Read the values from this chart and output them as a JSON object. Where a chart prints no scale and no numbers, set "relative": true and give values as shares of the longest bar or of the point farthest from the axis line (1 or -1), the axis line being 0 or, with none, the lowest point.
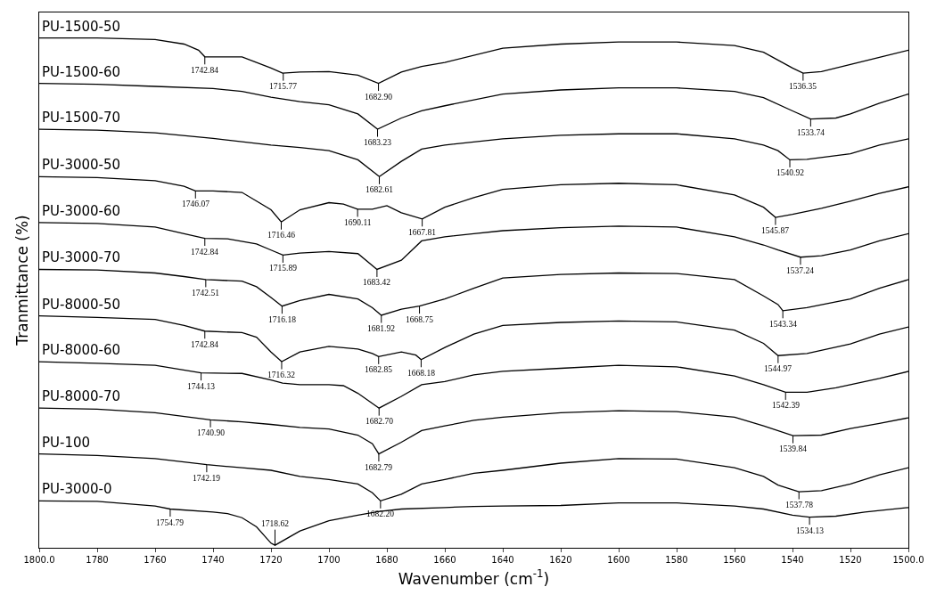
{
  "chart_data": {
    "type": "line",
    "relative": true,
    "xlabel": "Wavenumber (cm$^{-1}$)",
    "ylabel": "Tranmittance (%)",
    "xlim": [
      1800,
      1500
    ],
    "xticks": [
      {
        "value": 1800,
        "label": "1800.0"
      },
      {
        "value": 1780,
        "label": "1780"
      },
      {
        "value": 1760,
        "label": "1760"
      },
      {
        "value": 1740,
        "label": "1740"
      },
      {
        "value": 1720,
        "label": "1720"
      },
      {
        "value": 1700,
        "label": "1700"
      },
      {
        "value": 1680,
        "label": "1680"
      },
      {
        "value": 1660,
        "label": "1660"
      },
      {
        "value": 1640,
        "label": "1640"
      },
      {
        "value": 1620,
        "label": "1620"
      },
      {
        "value": 1600,
        "label": "1600"
      },
      {
        "value": 1580,
        "label": "1580"
      },
      {
        "value": 1560,
        "label": "1560"
      },
      {
        "value": 1540,
        "label": "1540"
      },
      {
        "value": 1520,
        "label": "1520"
      },
      {
        "value": 1500,
        "label": "1500.0"
      }
    ],
    "grid": false,
    "legend": false,
    "marker": "none",
    "line_style": "solid",
    "series": [
      {
        "name": "PU-1500-50",
        "color": "#000000",
        "x": [
          1800,
          1780,
          1760,
          1750,
          1745,
          1742.84,
          1730,
          1720,
          1716,
          1710,
          1700,
          1690,
          1682.9,
          1675,
          1668,
          1660,
          1640,
          1620,
          1600,
          1580,
          1560,
          1550,
          1540,
          1536.35,
          1530,
          1520,
          1510,
          1500
        ],
        "values": [
          1,
          1,
          0.997,
          0.988,
          0.976,
          0.963,
          0.963,
          0.941,
          0.931,
          0.933,
          0.934,
          0.927,
          0.911,
          0.933,
          0.944,
          0.952,
          0.98,
          0.988,
          0.992,
          0.992,
          0.985,
          0.972,
          0.941,
          0.931,
          0.934,
          0.948,
          0.962,
          0.976
        ]
      },
      {
        "name": "PU-1500-60",
        "color": "#000000",
        "x": [
          1800,
          1780,
          1760,
          1740,
          1730,
          1720,
          1710,
          1700,
          1690,
          1683.23,
          1675,
          1668,
          1660,
          1640,
          1620,
          1600,
          1580,
          1560,
          1550,
          1540,
          1533.74,
          1525,
          1520,
          1510,
          1500
        ],
        "values": [
          0.911,
          0.909,
          0.905,
          0.901,
          0.895,
          0.884,
          0.875,
          0.869,
          0.851,
          0.821,
          0.843,
          0.857,
          0.867,
          0.89,
          0.898,
          0.902,
          0.902,
          0.895,
          0.883,
          0.857,
          0.841,
          0.843,
          0.851,
          0.872,
          0.89
        ]
      },
      {
        "name": "PU-1500-70",
        "color": "#000000",
        "x": [
          1800,
          1780,
          1760,
          1740,
          1720,
          1710,
          1700,
          1690,
          1682.61,
          1675,
          1668,
          1660,
          1640,
          1620,
          1600,
          1580,
          1560,
          1550,
          1545,
          1540.92,
          1535,
          1520,
          1510,
          1500
        ],
        "values": [
          0.821,
          0.819,
          0.814,
          0.803,
          0.79,
          0.785,
          0.779,
          0.761,
          0.728,
          0.758,
          0.782,
          0.79,
          0.802,
          0.809,
          0.812,
          0.812,
          0.802,
          0.79,
          0.779,
          0.761,
          0.762,
          0.773,
          0.79,
          0.802
        ]
      },
      {
        "name": "PU-3000-50",
        "color": "#000000",
        "x": [
          1800,
          1780,
          1760,
          1750,
          1746.07,
          1740,
          1730,
          1725,
          1720,
          1716.46,
          1710,
          1700,
          1695,
          1690.11,
          1685,
          1680,
          1675,
          1667.81,
          1660,
          1650,
          1640,
          1620,
          1600,
          1580,
          1560,
          1550,
          1545.87,
          1540,
          1530,
          1520,
          1510,
          1500
        ],
        "values": [
          0.728,
          0.726,
          0.72,
          0.709,
          0.7,
          0.7,
          0.697,
          0.68,
          0.663,
          0.639,
          0.663,
          0.677,
          0.674,
          0.664,
          0.664,
          0.671,
          0.657,
          0.645,
          0.668,
          0.687,
          0.703,
          0.712,
          0.715,
          0.712,
          0.692,
          0.668,
          0.648,
          0.654,
          0.666,
          0.68,
          0.695,
          0.708
        ]
      },
      {
        "name": "PU-3000-60",
        "color": "#000000",
        "x": [
          1800,
          1780,
          1760,
          1750,
          1742.84,
          1735,
          1725,
          1720,
          1715.89,
          1710,
          1700,
          1690,
          1683.42,
          1675,
          1668,
          1660,
          1650,
          1640,
          1620,
          1600,
          1580,
          1560,
          1550,
          1545,
          1537.24,
          1530,
          1520,
          1510,
          1500
        ],
        "values": [
          0.638,
          0.636,
          0.629,
          0.616,
          0.607,
          0.606,
          0.596,
          0.584,
          0.574,
          0.578,
          0.581,
          0.577,
          0.546,
          0.564,
          0.602,
          0.61,
          0.616,
          0.622,
          0.628,
          0.631,
          0.629,
          0.61,
          0.594,
          0.584,
          0.57,
          0.573,
          0.584,
          0.602,
          0.616
        ]
      },
      {
        "name": "PU-3000-70",
        "color": "#000000",
        "x": [
          1800,
          1780,
          1760,
          1750,
          1742.51,
          1730,
          1725,
          1720,
          1716.18,
          1710,
          1700,
          1690,
          1685,
          1681.92,
          1675,
          1668.75,
          1660,
          1650,
          1640,
          1620,
          1600,
          1580,
          1560,
          1550,
          1545,
          1543.34,
          1535,
          1520,
          1510,
          1500
        ],
        "values": [
          0.546,
          0.545,
          0.539,
          0.532,
          0.526,
          0.523,
          0.512,
          0.491,
          0.474,
          0.485,
          0.497,
          0.488,
          0.471,
          0.456,
          0.468,
          0.474,
          0.488,
          0.509,
          0.529,
          0.536,
          0.539,
          0.538,
          0.526,
          0.494,
          0.477,
          0.465,
          0.471,
          0.488,
          0.509,
          0.526
        ]
      },
      {
        "name": "PU-8000-50",
        "color": "#000000",
        "x": [
          1800,
          1780,
          1760,
          1750,
          1742.84,
          1730,
          1725,
          1720,
          1716.32,
          1710,
          1700,
          1690,
          1685,
          1682.85,
          1675,
          1670,
          1668.18,
          1660,
          1650,
          1640,
          1620,
          1600,
          1580,
          1560,
          1550,
          1544.97,
          1535,
          1520,
          1510,
          1500
        ],
        "values": [
          0.455,
          0.452,
          0.448,
          0.436,
          0.425,
          0.422,
          0.413,
          0.384,
          0.365,
          0.384,
          0.395,
          0.39,
          0.381,
          0.375,
          0.384,
          0.378,
          0.369,
          0.393,
          0.419,
          0.436,
          0.442,
          0.445,
          0.443,
          0.427,
          0.401,
          0.377,
          0.381,
          0.4,
          0.419,
          0.433
        ]
      },
      {
        "name": "PU-8000-60",
        "color": "#000000",
        "x": [
          1800,
          1780,
          1760,
          1744.13,
          1730,
          1720,
          1716,
          1710,
          1700,
          1695,
          1690,
          1682.7,
          1675,
          1668,
          1660,
          1650,
          1640,
          1620,
          1600,
          1580,
          1560,
          1550,
          1542.39,
          1535,
          1525,
          1510,
          1500
        ],
        "values": [
          0.365,
          0.362,
          0.358,
          0.343,
          0.342,
          0.329,
          0.323,
          0.32,
          0.32,
          0.318,
          0.303,
          0.274,
          0.297,
          0.32,
          0.326,
          0.339,
          0.346,
          0.352,
          0.358,
          0.355,
          0.337,
          0.32,
          0.305,
          0.305,
          0.314,
          0.332,
          0.346
        ]
      },
      {
        "name": "PU-8000-70",
        "color": "#000000",
        "x": [
          1800,
          1780,
          1760,
          1740.9,
          1730,
          1720,
          1710,
          1700,
          1690,
          1685,
          1682.79,
          1675,
          1668,
          1660,
          1650,
          1640,
          1620,
          1600,
          1580,
          1560,
          1550,
          1539.84,
          1530,
          1520,
          1510,
          1500
        ],
        "values": [
          0.274,
          0.272,
          0.265,
          0.251,
          0.247,
          0.242,
          0.236,
          0.233,
          0.221,
          0.204,
          0.184,
          0.207,
          0.23,
          0.239,
          0.25,
          0.256,
          0.265,
          0.269,
          0.267,
          0.256,
          0.239,
          0.22,
          0.221,
          0.234,
          0.244,
          0.255
        ]
      },
      {
        "name": "PU-100",
        "color": "#000000",
        "x": [
          1800,
          1780,
          1760,
          1742.19,
          1730,
          1720,
          1710,
          1700,
          1690,
          1685,
          1682.2,
          1675,
          1668,
          1660,
          1650,
          1640,
          1620,
          1600,
          1580,
          1560,
          1550,
          1545,
          1537.78,
          1530,
          1520,
          1510,
          1500
        ],
        "values": [
          0.184,
          0.181,
          0.175,
          0.163,
          0.157,
          0.152,
          0.14,
          0.134,
          0.125,
          0.108,
          0.092,
          0.105,
          0.125,
          0.134,
          0.146,
          0.152,
          0.166,
          0.175,
          0.174,
          0.157,
          0.14,
          0.123,
          0.11,
          0.112,
          0.125,
          0.143,
          0.157
        ]
      },
      {
        "name": "PU-3000-0",
        "color": "#000000",
        "x": [
          1800,
          1780,
          1760,
          1754.79,
          1740,
          1735,
          1730,
          1725,
          1720,
          1718.62,
          1710,
          1700,
          1690,
          1683,
          1675,
          1660,
          1650,
          1640,
          1620,
          1600,
          1580,
          1560,
          1550,
          1540,
          1534.13,
          1525,
          1515,
          1500
        ],
        "values": [
          0.092,
          0.091,
          0.082,
          0.076,
          0.07,
          0.067,
          0.059,
          0.041,
          0.009,
          0.005,
          0.033,
          0.053,
          0.064,
          0.071,
          0.076,
          0.079,
          0.081,
          0.082,
          0.083,
          0.088,
          0.088,
          0.082,
          0.076,
          0.064,
          0.06,
          0.062,
          0.07,
          0.079
        ]
      }
    ],
    "annotations": [
      {
        "text": "1742.84",
        "x": 1742.84,
        "y": 0.963
      },
      {
        "text": "1715.77",
        "x": 1715.77,
        "y": 0.931
      },
      {
        "text": "1682.90",
        "x": 1682.9,
        "y": 0.911
      },
      {
        "text": "1536.35",
        "x": 1536.35,
        "y": 0.931
      },
      {
        "text": "1683.23",
        "x": 1683.23,
        "y": 0.821
      },
      {
        "text": "1533.74",
        "x": 1533.74,
        "y": 0.841
      },
      {
        "text": "1682.61",
        "x": 1682.61,
        "y": 0.728
      },
      {
        "text": "1540.92",
        "x": 1540.92,
        "y": 0.761
      },
      {
        "text": "1746.07",
        "x": 1746.07,
        "y": 0.7
      },
      {
        "text": "1716.46",
        "x": 1716.46,
        "y": 0.639
      },
      {
        "text": "1690.11",
        "x": 1690.11,
        "y": 0.664
      },
      {
        "text": "1667.81",
        "x": 1667.81,
        "y": 0.645
      },
      {
        "text": "1545.87",
        "x": 1545.87,
        "y": 0.648
      },
      {
        "text": "1742.84",
        "x": 1742.84,
        "y": 0.607
      },
      {
        "text": "1715.89",
        "x": 1715.89,
        "y": 0.574
      },
      {
        "text": "1683.42",
        "x": 1683.42,
        "y": 0.546
      },
      {
        "text": "1537.24",
        "x": 1537.24,
        "y": 0.57
      },
      {
        "text": "1742.51",
        "x": 1742.51,
        "y": 0.526
      },
      {
        "text": "1716.18",
        "x": 1716.18,
        "y": 0.474
      },
      {
        "text": "1681.92",
        "x": 1681.92,
        "y": 0.456
      },
      {
        "text": "1668.75",
        "x": 1668.75,
        "y": 0.474
      },
      {
        "text": "1543.34",
        "x": 1543.34,
        "y": 0.465
      },
      {
        "text": "1742.84",
        "x": 1742.84,
        "y": 0.425
      },
      {
        "text": "1716.32",
        "x": 1716.32,
        "y": 0.365
      },
      {
        "text": "1682.85",
        "x": 1682.85,
        "y": 0.375
      },
      {
        "text": "1668.18",
        "x": 1668.18,
        "y": 0.369
      },
      {
        "text": "1544.97",
        "x": 1544.97,
        "y": 0.377
      },
      {
        "text": "1744.13",
        "x": 1744.13,
        "y": 0.343
      },
      {
        "text": "1682.70",
        "x": 1682.7,
        "y": 0.274
      },
      {
        "text": "1542.39",
        "x": 1542.39,
        "y": 0.305
      },
      {
        "text": "1740.90",
        "x": 1740.9,
        "y": 0.251
      },
      {
        "text": "1682.79",
        "x": 1682.79,
        "y": 0.184
      },
      {
        "text": "1539.84",
        "x": 1539.84,
        "y": 0.22
      },
      {
        "text": "1742.19",
        "x": 1742.19,
        "y": 0.163
      },
      {
        "text": "1682.20",
        "x": 1682.2,
        "y": 0.092
      },
      {
        "text": "1537.78",
        "x": 1537.78,
        "y": 0.11
      },
      {
        "text": "1754.79",
        "x": 1754.79,
        "y": 0.076
      },
      {
        "text": "1718.62",
        "x": 1718.62,
        "y": 0.005
      },
      {
        "text": "1534.13",
        "x": 1534.13,
        "y": 0.06
      }
    ]
  }
}
